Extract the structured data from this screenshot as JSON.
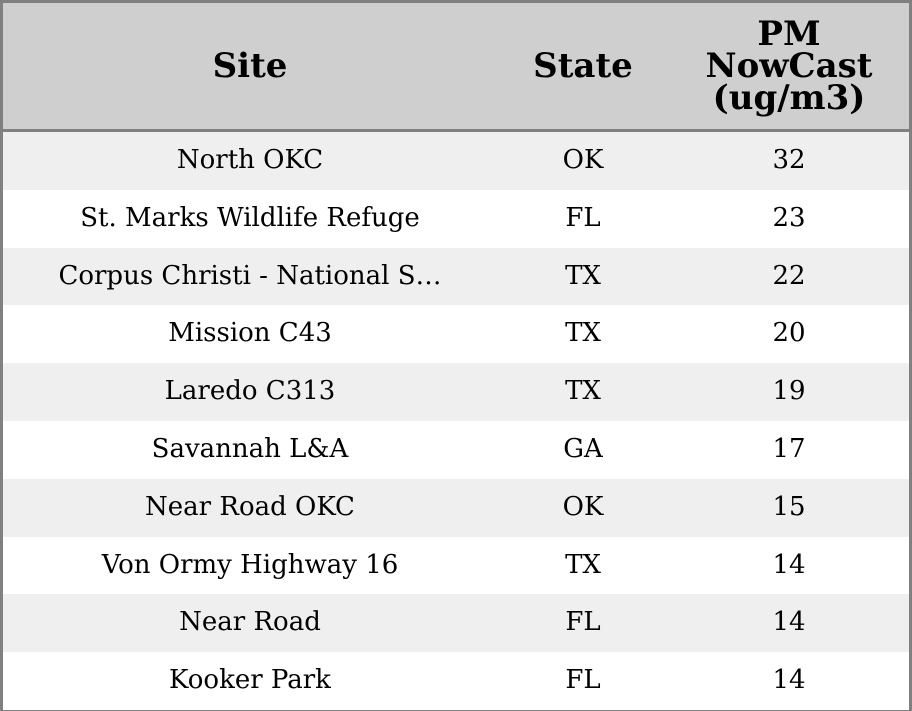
{
  "chart_data": {
    "type": "table",
    "columns": [
      "Site",
      "State",
      "PM\nNowCast\n(ug/m3)"
    ],
    "rows": [
      {
        "site": "North OKC",
        "state": "OK",
        "pm": "32"
      },
      {
        "site": "St. Marks Wildlife Refuge",
        "state": "FL",
        "pm": "23"
      },
      {
        "site": "Corpus Christi - National S…",
        "state": "TX",
        "pm": "22"
      },
      {
        "site": "Mission C43",
        "state": "TX",
        "pm": "20"
      },
      {
        "site": "Laredo C313",
        "state": "TX",
        "pm": "19"
      },
      {
        "site": "Savannah L&A",
        "state": "GA",
        "pm": "17"
      },
      {
        "site": "Near Road OKC",
        "state": "OK",
        "pm": "15"
      },
      {
        "site": "Von Ormy Highway 16",
        "state": "TX",
        "pm": "14"
      },
      {
        "site": "Near Road",
        "state": "FL",
        "pm": "14"
      },
      {
        "site": "Kooker Park",
        "state": "FL",
        "pm": "14"
      }
    ],
    "colors": {
      "header_bg": "#cfcfcf",
      "border": "#808080",
      "row_alt": "#efefef",
      "row_base": "#ffffff"
    }
  }
}
